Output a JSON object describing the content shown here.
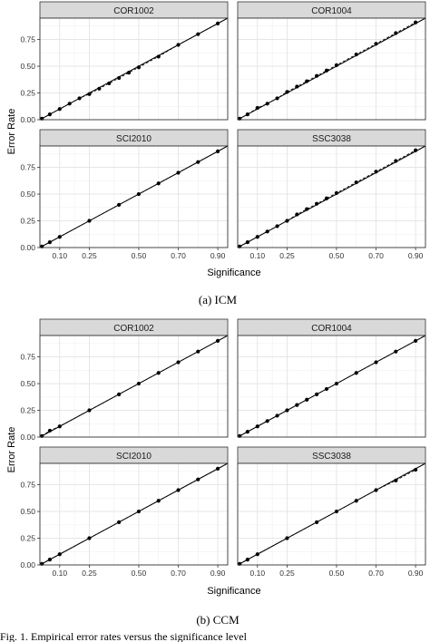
{
  "figures": [
    {
      "caption": "(a) ICM",
      "xlabel": "Significance",
      "ylabel": "Error Rate"
    },
    {
      "caption": "(b) CCM",
      "xlabel": "Significance",
      "ylabel": "Error Rate"
    }
  ],
  "footer_text": "Fig. 1. Empirical error rates versus the significance level",
  "chart_data": [
    {
      "type": "scatter",
      "title": "(a) ICM",
      "xlabel": "Significance",
      "ylabel": "Error Rate",
      "xlim": [
        0,
        0.95
      ],
      "ylim": [
        0,
        0.95
      ],
      "x_ticks": [
        0.1,
        0.25,
        0.5,
        0.7,
        0.9
      ],
      "x_tick_labels": [
        "0.10",
        "0.25",
        "0.50",
        "0.70",
        "0.90"
      ],
      "y_ticks": [
        0.0,
        0.25,
        0.5,
        0.75
      ],
      "y_tick_labels": [
        "0.00",
        "0.25",
        "0.50",
        "0.75"
      ],
      "grid": true,
      "reference_line": "y = x",
      "facets": [
        {
          "name": "COR1002",
          "x": [
            0.01,
            0.05,
            0.1,
            0.15,
            0.2,
            0.25,
            0.3,
            0.35,
            0.4,
            0.45,
            0.5,
            0.6,
            0.7,
            0.8,
            0.9
          ],
          "y": [
            0.01,
            0.05,
            0.1,
            0.15,
            0.2,
            0.24,
            0.29,
            0.34,
            0.39,
            0.44,
            0.49,
            0.59,
            0.7,
            0.8,
            0.9
          ]
        },
        {
          "name": "COR1004",
          "x": [
            0.01,
            0.05,
            0.1,
            0.15,
            0.2,
            0.25,
            0.3,
            0.35,
            0.4,
            0.45,
            0.5,
            0.6,
            0.7,
            0.8,
            0.9
          ],
          "y": [
            0.01,
            0.05,
            0.11,
            0.15,
            0.2,
            0.26,
            0.31,
            0.36,
            0.41,
            0.46,
            0.51,
            0.61,
            0.71,
            0.81,
            0.91
          ]
        },
        {
          "name": "SCI2010",
          "x": [
            0.01,
            0.05,
            0.1,
            0.25,
            0.4,
            0.5,
            0.6,
            0.7,
            0.8,
            0.9
          ],
          "y": [
            0.01,
            0.05,
            0.1,
            0.25,
            0.4,
            0.5,
            0.6,
            0.7,
            0.8,
            0.9
          ]
        },
        {
          "name": "SSC3038",
          "x": [
            0.01,
            0.05,
            0.1,
            0.15,
            0.2,
            0.25,
            0.3,
            0.35,
            0.4,
            0.45,
            0.5,
            0.6,
            0.7,
            0.8,
            0.9
          ],
          "y": [
            0.01,
            0.05,
            0.1,
            0.15,
            0.2,
            0.25,
            0.31,
            0.36,
            0.41,
            0.46,
            0.51,
            0.61,
            0.71,
            0.81,
            0.91
          ]
        }
      ]
    },
    {
      "type": "scatter",
      "title": "(b) CCM",
      "xlabel": "Significance",
      "ylabel": "Error Rate",
      "xlim": [
        0,
        0.95
      ],
      "ylim": [
        0,
        0.95
      ],
      "x_ticks": [
        0.1,
        0.25,
        0.5,
        0.7,
        0.9
      ],
      "x_tick_labels": [
        "0.10",
        "0.25",
        "0.50",
        "0.70",
        "0.90"
      ],
      "y_ticks": [
        0.0,
        0.25,
        0.5,
        0.75
      ],
      "y_tick_labels": [
        "0.00",
        "0.25",
        "0.50",
        "0.75"
      ],
      "grid": true,
      "reference_line": "y = x",
      "facets": [
        {
          "name": "COR1002",
          "x": [
            0.01,
            0.05,
            0.1,
            0.25,
            0.4,
            0.5,
            0.6,
            0.7,
            0.8,
            0.9
          ],
          "y": [
            0.01,
            0.06,
            0.1,
            0.25,
            0.4,
            0.5,
            0.6,
            0.7,
            0.8,
            0.9
          ]
        },
        {
          "name": "COR1004",
          "x": [
            0.01,
            0.05,
            0.1,
            0.15,
            0.2,
            0.25,
            0.3,
            0.35,
            0.4,
            0.45,
            0.5,
            0.6,
            0.7,
            0.8,
            0.9
          ],
          "y": [
            0.01,
            0.05,
            0.1,
            0.15,
            0.2,
            0.25,
            0.3,
            0.35,
            0.4,
            0.45,
            0.5,
            0.6,
            0.7,
            0.8,
            0.9
          ]
        },
        {
          "name": "SCI2010",
          "x": [
            0.01,
            0.05,
            0.1,
            0.25,
            0.4,
            0.5,
            0.6,
            0.7,
            0.8,
            0.9
          ],
          "y": [
            0.01,
            0.05,
            0.1,
            0.25,
            0.4,
            0.5,
            0.6,
            0.7,
            0.8,
            0.9
          ]
        },
        {
          "name": "SSC3038",
          "x": [
            0.01,
            0.05,
            0.1,
            0.25,
            0.4,
            0.5,
            0.6,
            0.7,
            0.8,
            0.9
          ],
          "y": [
            0.01,
            0.05,
            0.1,
            0.25,
            0.4,
            0.5,
            0.6,
            0.7,
            0.79,
            0.89
          ]
        }
      ]
    }
  ]
}
